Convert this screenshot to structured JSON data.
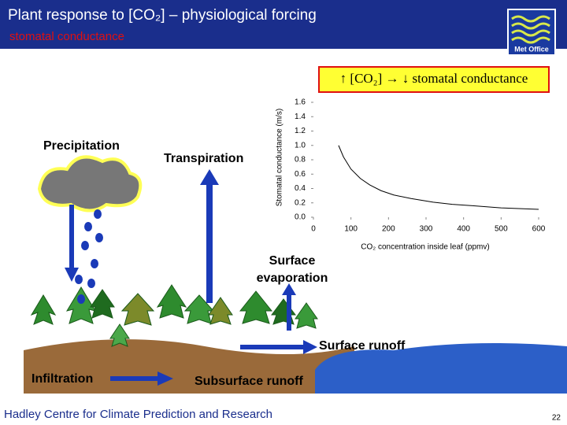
{
  "header": {
    "title": "Plant response to [CO₂] – physiological forcing",
    "subtitle": "stomatal conductance",
    "logo": "Met Office"
  },
  "callout": "↑ [CO₂] → ↓ stomatal conductance",
  "chart_data": {
    "type": "line",
    "ylabel": "Stomatal conductance (m/s)",
    "xlabel": "CO₂ concentration inside leaf (ppmv)",
    "x": [
      67,
      80,
      100,
      125,
      150,
      180,
      214,
      260,
      319,
      370,
      424,
      500,
      600
    ],
    "values": [
      1.0,
      0.84,
      0.67,
      0.54,
      0.45,
      0.37,
      0.31,
      0.26,
      0.21,
      0.18,
      0.16,
      0.13,
      0.11
    ],
    "color": "#000000",
    "xlim": [
      0,
      600
    ],
    "ylim": [
      0,
      1.6
    ],
    "xticks": [
      0,
      100,
      200,
      300,
      400,
      500,
      600
    ],
    "yticks": [
      {
        "value": 0,
        "label": "0.0"
      },
      0.2,
      0.4,
      0.6,
      0.8,
      {
        "value": 1,
        "label": "1.0"
      },
      1.2,
      1.4,
      1.6
    ]
  },
  "labels": {
    "precipitation": "Precipitation",
    "transpiration": "Transpiration",
    "evaporation": [
      "Surface",
      "evaporation"
    ],
    "surface_runoff": "Surface runoff",
    "infiltration": "Infiltration",
    "subsurface_runoff": "Subsurface runoff"
  },
  "footer": {
    "text": "Hadley Centre for Climate Prediction and Research",
    "page": "22"
  }
}
